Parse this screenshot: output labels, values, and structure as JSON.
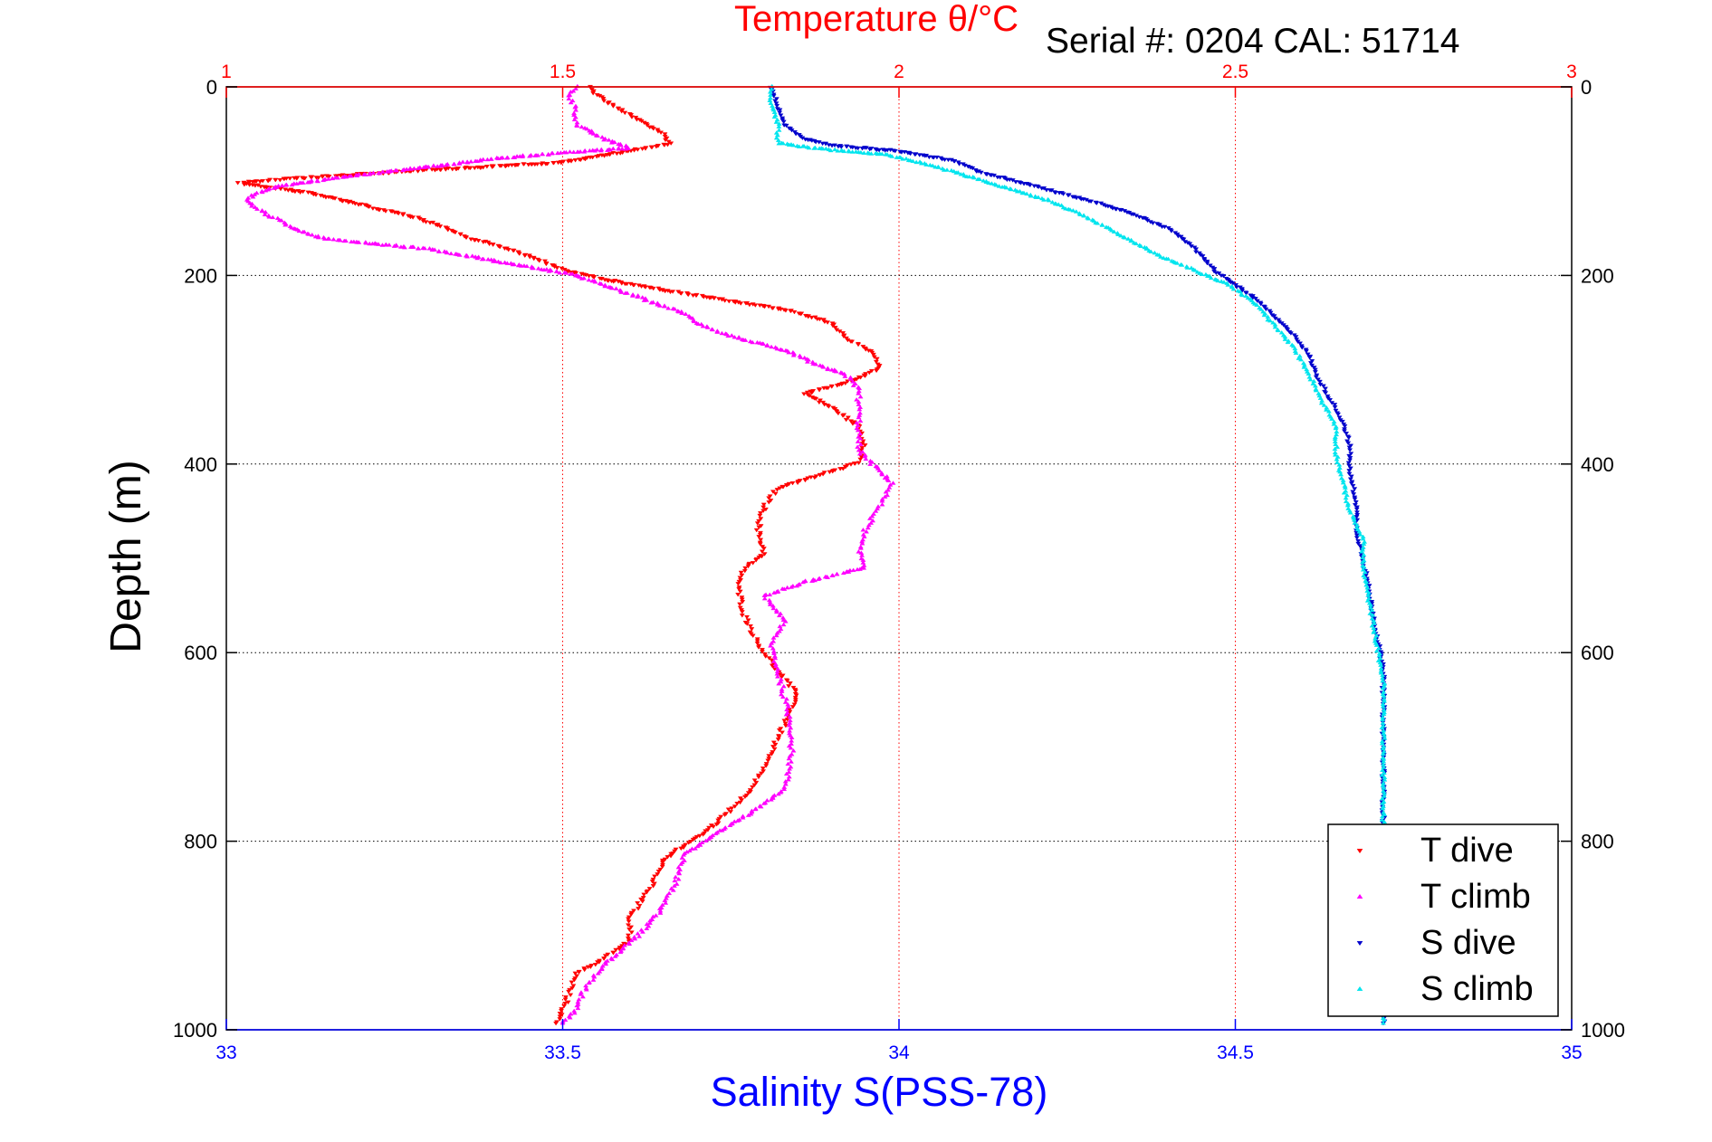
{
  "chart_data": {
    "type": "scatter",
    "title": "Temperature θ/°C",
    "subtitle": "Serial #: 0204  CAL: 51714",
    "ylabel": "Depth (m)",
    "xlabel_bottom": "Salinity S(PSS-78)",
    "y_axis": {
      "range": [
        0,
        1000
      ],
      "reversed": true,
      "ticks": [
        0,
        200,
        400,
        600,
        800,
        1000
      ]
    },
    "x_axis_top": {
      "label": "Temperature θ/°C",
      "range": [
        1,
        3
      ],
      "ticks": [
        1,
        1.5,
        2,
        2.5,
        3
      ],
      "tick_labels": [
        "1",
        "1.5",
        "2",
        "2.5",
        "3"
      ]
    },
    "x_axis_bottom": {
      "label": "Salinity S(PSS-78)",
      "range": [
        33,
        35
      ],
      "ticks": [
        33,
        33.5,
        34,
        34.5,
        35
      ],
      "tick_labels": [
        "33",
        "33.5",
        "34",
        "34.5",
        "35"
      ]
    },
    "grid": true,
    "legend_position": "bottom-right",
    "colors": {
      "top_axis": "#ff0000",
      "bottom_axis": "#0000ff",
      "grid_top": "#ff0000",
      "grid": "#000000"
    },
    "series": [
      {
        "name": "T dive",
        "axis": "temperature",
        "color": "#ff0000",
        "marker": "triangle-down",
        "points": [
          [
            1.54,
            0
          ],
          [
            1.55,
            8
          ],
          [
            1.58,
            22
          ],
          [
            1.62,
            38
          ],
          [
            1.65,
            50
          ],
          [
            1.66,
            60
          ],
          [
            1.58,
            70
          ],
          [
            1.5,
            80
          ],
          [
            1.3,
            88
          ],
          [
            1.08,
            98
          ],
          [
            1.02,
            102
          ],
          [
            1.12,
            112
          ],
          [
            1.2,
            125
          ],
          [
            1.28,
            138
          ],
          [
            1.32,
            148
          ],
          [
            1.36,
            160
          ],
          [
            1.42,
            172
          ],
          [
            1.46,
            182
          ],
          [
            1.5,
            194
          ],
          [
            1.56,
            204
          ],
          [
            1.64,
            214
          ],
          [
            1.74,
            226
          ],
          [
            1.83,
            236
          ],
          [
            1.9,
            250
          ],
          [
            1.92,
            265
          ],
          [
            1.96,
            282
          ],
          [
            1.97,
            298
          ],
          [
            1.93,
            312
          ],
          [
            1.86,
            325
          ],
          [
            1.9,
            340
          ],
          [
            1.94,
            360
          ],
          [
            1.95,
            380
          ],
          [
            1.94,
            398
          ],
          [
            1.88,
            412
          ],
          [
            1.82,
            425
          ],
          [
            1.8,
            445
          ],
          [
            1.79,
            470
          ],
          [
            1.8,
            495
          ],
          [
            1.77,
            510
          ],
          [
            1.76,
            530
          ],
          [
            1.77,
            560
          ],
          [
            1.79,
            590
          ],
          [
            1.82,
            620
          ],
          [
            1.85,
            645
          ],
          [
            1.84,
            660
          ],
          [
            1.82,
            690
          ],
          [
            1.8,
            720
          ],
          [
            1.78,
            745
          ],
          [
            1.73,
            780
          ],
          [
            1.69,
            800
          ],
          [
            1.65,
            820
          ],
          [
            1.63,
            850
          ],
          [
            1.6,
            880
          ],
          [
            1.6,
            905
          ],
          [
            1.56,
            925
          ],
          [
            1.52,
            940
          ],
          [
            1.51,
            960
          ],
          [
            1.5,
            980
          ],
          [
            1.49,
            993
          ]
        ]
      },
      {
        "name": "T climb",
        "axis": "temperature",
        "color": "#ff00ff",
        "marker": "triangle-up",
        "points": [
          [
            1.52,
            0
          ],
          [
            1.51,
            10
          ],
          [
            1.52,
            25
          ],
          [
            1.52,
            40
          ],
          [
            1.56,
            55
          ],
          [
            1.6,
            65
          ],
          [
            1.5,
            70
          ],
          [
            1.4,
            76
          ],
          [
            1.3,
            85
          ],
          [
            1.18,
            95
          ],
          [
            1.08,
            105
          ],
          [
            1.04,
            115
          ],
          [
            1.03,
            122
          ],
          [
            1.06,
            135
          ],
          [
            1.1,
            150
          ],
          [
            1.14,
            160
          ],
          [
            1.2,
            165
          ],
          [
            1.3,
            172
          ],
          [
            1.38,
            182
          ],
          [
            1.44,
            190
          ],
          [
            1.52,
            200
          ],
          [
            1.56,
            210
          ],
          [
            1.62,
            225
          ],
          [
            1.68,
            240
          ],
          [
            1.7,
            250
          ],
          [
            1.74,
            262
          ],
          [
            1.79,
            272
          ],
          [
            1.84,
            282
          ],
          [
            1.88,
            296
          ],
          [
            1.92,
            305
          ],
          [
            1.94,
            320
          ],
          [
            1.94,
            340
          ],
          [
            1.94,
            362
          ],
          [
            1.94,
            385
          ],
          [
            1.96,
            400
          ],
          [
            1.99,
            420
          ],
          [
            1.97,
            445
          ],
          [
            1.95,
            470
          ],
          [
            1.94,
            490
          ],
          [
            1.95,
            510
          ],
          [
            1.86,
            525
          ],
          [
            1.8,
            540
          ],
          [
            1.83,
            565
          ],
          [
            1.81,
            590
          ],
          [
            1.82,
            620
          ],
          [
            1.83,
            650
          ],
          [
            1.84,
            680
          ],
          [
            1.84,
            710
          ],
          [
            1.83,
            745
          ],
          [
            1.78,
            770
          ],
          [
            1.72,
            795
          ],
          [
            1.68,
            815
          ],
          [
            1.67,
            840
          ],
          [
            1.65,
            870
          ],
          [
            1.62,
            895
          ],
          [
            1.58,
            920
          ],
          [
            1.55,
            940
          ],
          [
            1.53,
            960
          ],
          [
            1.52,
            980
          ],
          [
            1.5,
            993
          ]
        ]
      },
      {
        "name": "S dive",
        "axis": "salinity",
        "color": "#0000cc",
        "marker": "triangle-down",
        "points": [
          [
            33.81,
            0
          ],
          [
            33.82,
            20
          ],
          [
            33.83,
            40
          ],
          [
            33.86,
            55
          ],
          [
            33.9,
            62
          ],
          [
            34.0,
            68
          ],
          [
            34.08,
            78
          ],
          [
            34.12,
            90
          ],
          [
            34.2,
            105
          ],
          [
            34.28,
            120
          ],
          [
            34.35,
            135
          ],
          [
            34.4,
            150
          ],
          [
            34.43,
            165
          ],
          [
            34.45,
            180
          ],
          [
            34.47,
            195
          ],
          [
            34.5,
            210
          ],
          [
            34.53,
            225
          ],
          [
            34.56,
            245
          ],
          [
            34.59,
            265
          ],
          [
            34.61,
            285
          ],
          [
            34.62,
            305
          ],
          [
            34.64,
            330
          ],
          [
            34.66,
            355
          ],
          [
            34.67,
            380
          ],
          [
            34.67,
            410
          ],
          [
            34.68,
            440
          ],
          [
            34.68,
            470
          ],
          [
            34.69,
            500
          ],
          [
            34.7,
            540
          ],
          [
            34.71,
            580
          ],
          [
            34.72,
            620
          ],
          [
            34.72,
            660
          ],
          [
            34.72,
            700
          ],
          [
            34.72,
            750
          ],
          [
            34.72,
            800
          ],
          [
            34.72,
            850
          ],
          [
            34.72,
            900
          ],
          [
            34.72,
            950
          ],
          [
            34.72,
            993
          ]
        ]
      },
      {
        "name": "S climb",
        "axis": "salinity",
        "color": "#00e5ee",
        "marker": "triangle-up",
        "points": [
          [
            33.81,
            0
          ],
          [
            33.81,
            20
          ],
          [
            33.82,
            40
          ],
          [
            33.82,
            60
          ],
          [
            33.9,
            67
          ],
          [
            33.98,
            72
          ],
          [
            34.03,
            80
          ],
          [
            34.08,
            90
          ],
          [
            34.15,
            105
          ],
          [
            34.22,
            120
          ],
          [
            34.27,
            135
          ],
          [
            34.31,
            150
          ],
          [
            34.35,
            165
          ],
          [
            34.39,
            180
          ],
          [
            34.44,
            195
          ],
          [
            34.49,
            210
          ],
          [
            34.53,
            230
          ],
          [
            34.56,
            255
          ],
          [
            34.59,
            280
          ],
          [
            34.61,
            305
          ],
          [
            34.63,
            335
          ],
          [
            34.65,
            360
          ],
          [
            34.65,
            390
          ],
          [
            34.66,
            420
          ],
          [
            34.67,
            450
          ],
          [
            34.69,
            480
          ],
          [
            34.69,
            510
          ],
          [
            34.7,
            550
          ],
          [
            34.71,
            590
          ],
          [
            34.72,
            630
          ],
          [
            34.72,
            680
          ],
          [
            34.72,
            730
          ],
          [
            34.72,
            780
          ],
          [
            34.72,
            830
          ],
          [
            34.72,
            880
          ],
          [
            34.72,
            930
          ],
          [
            34.72,
            970
          ],
          [
            34.72,
            993
          ]
        ]
      }
    ]
  }
}
